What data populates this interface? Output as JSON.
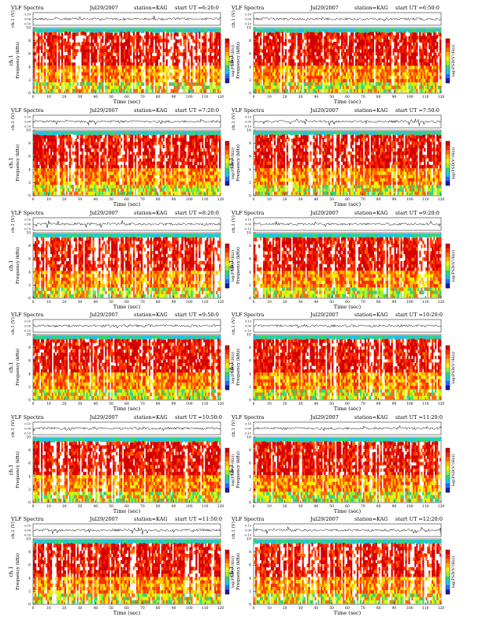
{
  "page_title": "VLF Spectra station=KAG — 12 panels",
  "colors": {
    "spectrogram_bands": [
      "#d40000",
      "#ff2a00",
      "#ff6a00",
      "#ffb800",
      "#f2f200",
      "#9cf22e",
      "#31d67b",
      "#22c3e6",
      "#2a6bff",
      "#1a1aa8"
    ],
    "trace_line": "#000000",
    "background": "#ffffff"
  },
  "labels": {
    "title_left": "VLF Spectra",
    "y_top": "ch.1 (V)",
    "y_freq_1": "ch.1",
    "y_freq_2": "Frequency (kHz)",
    "x_axis": "Time (sec)",
    "colorbar": "log(PSD(V²/Hz))",
    "top_ticks": [
      "0.10",
      "0.00",
      "-0.10"
    ],
    "freq_ticks": [
      "0",
      "2",
      "4",
      "6",
      "8",
      "10"
    ],
    "time_ticks": [
      "0",
      "10",
      "20",
      "30",
      "40",
      "50",
      "60",
      "70",
      "80",
      "90",
      "100",
      "110",
      "120"
    ]
  },
  "chart_data": [
    {
      "type": "heatmap",
      "title": "VLF Spectra",
      "date": "Jul29/2007",
      "station": "station=KAG",
      "start_ut": "start UT =6:20:0",
      "xlabel": "Time (sec)",
      "ylabel": "Frequency (kHz)",
      "xlim": [
        0,
        120
      ],
      "ylim": [
        0,
        10
      ],
      "top_ylim": [
        -0.1,
        0.1
      ],
      "colorbar_label": "log(PSD(V²/Hz))"
    },
    {
      "type": "heatmap",
      "title": "VLF Spectra",
      "date": "Jul29/2007",
      "station": "station=KAG",
      "start_ut": "start UT =6:50:0",
      "xlabel": "Time (sec)",
      "ylabel": "Frequency (kHz)",
      "xlim": [
        0,
        120
      ],
      "ylim": [
        0,
        10
      ],
      "top_ylim": [
        -0.1,
        0.1
      ],
      "colorbar_label": "log(PSD(V²/Hz))"
    },
    {
      "type": "heatmap",
      "title": "VLF Spectra",
      "date": "Jul29/2007",
      "station": "station=KAG",
      "start_ut": "start UT =7:20:0",
      "xlabel": "Time (sec)",
      "ylabel": "Frequency (kHz)",
      "xlim": [
        0,
        120
      ],
      "ylim": [
        0,
        10
      ],
      "top_ylim": [
        -0.1,
        0.1
      ],
      "colorbar_label": "log(PSD(V²/Hz))"
    },
    {
      "type": "heatmap",
      "title": "VLF Spectra",
      "date": "Jul29/2007",
      "station": "station=KAG",
      "start_ut": "start UT =7:50:0",
      "xlabel": "Time (sec)",
      "ylabel": "Frequency (kHz)",
      "xlim": [
        0,
        120
      ],
      "ylim": [
        0,
        10
      ],
      "top_ylim": [
        -0.1,
        0.1
      ],
      "colorbar_label": "log(PSD(V²/Hz))"
    },
    {
      "type": "heatmap",
      "title": "VLF Spectra",
      "date": "Jul29/2007",
      "station": "station=KAG",
      "start_ut": "start UT =8:20:0",
      "xlabel": "Time (sec)",
      "ylabel": "Frequency (kHz)",
      "xlim": [
        0,
        120
      ],
      "ylim": [
        0,
        10
      ],
      "top_ylim": [
        -0.1,
        0.1
      ],
      "colorbar_label": "log(PSD(V²/Hz))"
    },
    {
      "type": "heatmap",
      "title": "VLF Spectra",
      "date": "Jul29/2007",
      "station": "station=KAG",
      "start_ut": "start UT =9:20:0",
      "xlabel": "Time (sec)",
      "ylabel": "Frequency (kHz)",
      "xlim": [
        0,
        120
      ],
      "ylim": [
        0,
        10
      ],
      "top_ylim": [
        -0.1,
        0.1
      ],
      "colorbar_label": "log(PSD(V²/Hz))"
    },
    {
      "type": "heatmap",
      "title": "VLF Spectra",
      "date": "Jul29/2007",
      "station": "station=KAG",
      "start_ut": "start UT =9:50:0",
      "xlabel": "Time (sec)",
      "ylabel": "Frequency (kHz)",
      "xlim": [
        0,
        120
      ],
      "ylim": [
        0,
        10
      ],
      "top_ylim": [
        -0.1,
        0.1
      ],
      "colorbar_label": "log(PSD(V²/Hz))"
    },
    {
      "type": "heatmap",
      "title": "VLF Spectra",
      "date": "Jul29/2007",
      "station": "station=KAG",
      "start_ut": "start UT =10:20:0",
      "xlabel": "Time (sec)",
      "ylabel": "Frequency (kHz)",
      "xlim": [
        0,
        120
      ],
      "ylim": [
        0,
        10
      ],
      "top_ylim": [
        -0.1,
        0.1
      ],
      "colorbar_label": "log(PSD(V²/Hz))"
    },
    {
      "type": "heatmap",
      "title": "VLF Spectra",
      "date": "Jul29/2007",
      "station": "station=KAG",
      "start_ut": "start UT =10:50:0",
      "xlabel": "Time (sec)",
      "ylabel": "Frequency (kHz)",
      "xlim": [
        0,
        120
      ],
      "ylim": [
        0,
        10
      ],
      "top_ylim": [
        -0.1,
        0.1
      ],
      "colorbar_label": "log(PSD(V²/Hz))"
    },
    {
      "type": "heatmap",
      "title": "VLF Spectra",
      "date": "Jul29/2007",
      "station": "station=KAG",
      "start_ut": "start UT =11:20:0",
      "xlabel": "Time (sec)",
      "ylabel": "Frequency (kHz)",
      "xlim": [
        0,
        120
      ],
      "ylim": [
        0,
        10
      ],
      "top_ylim": [
        -0.1,
        0.1
      ],
      "colorbar_label": "log(PSD(V²/Hz))"
    },
    {
      "type": "heatmap",
      "title": "VLF Spectra",
      "date": "Jul29/2007",
      "station": "station=KAG",
      "start_ut": "start UT =11:50:0",
      "xlabel": "Time (sec)",
      "ylabel": "Frequency (kHz)",
      "xlim": [
        0,
        120
      ],
      "ylim": [
        0,
        10
      ],
      "top_ylim": [
        -0.1,
        0.1
      ],
      "colorbar_label": "log(PSD(V²/Hz))"
    },
    {
      "type": "heatmap",
      "title": "VLF Spectra",
      "date": "Jul29/2007",
      "station": "station=KAG",
      "start_ut": "start UT =12:20:0",
      "xlabel": "Time (sec)",
      "ylabel": "Frequency (kHz)",
      "xlim": [
        0,
        120
      ],
      "ylim": [
        0,
        10
      ],
      "top_ylim": [
        -0.1,
        0.1
      ],
      "colorbar_label": "log(PSD(V²/Hz))"
    }
  ]
}
